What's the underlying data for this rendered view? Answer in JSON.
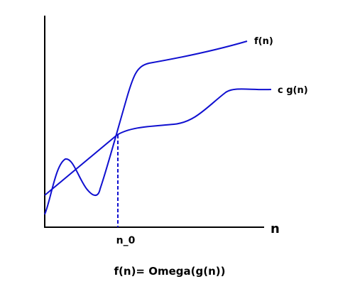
{
  "diagram": {
    "labels": {
      "curve_f": "f(n)",
      "curve_cg": "c g(n)",
      "x_axis": "n",
      "threshold": "n_0",
      "caption": "f(n)= Omega(g(n))"
    },
    "colors": {
      "curve": "#1010d0",
      "axis": "#000000",
      "text": "#000000"
    }
  }
}
